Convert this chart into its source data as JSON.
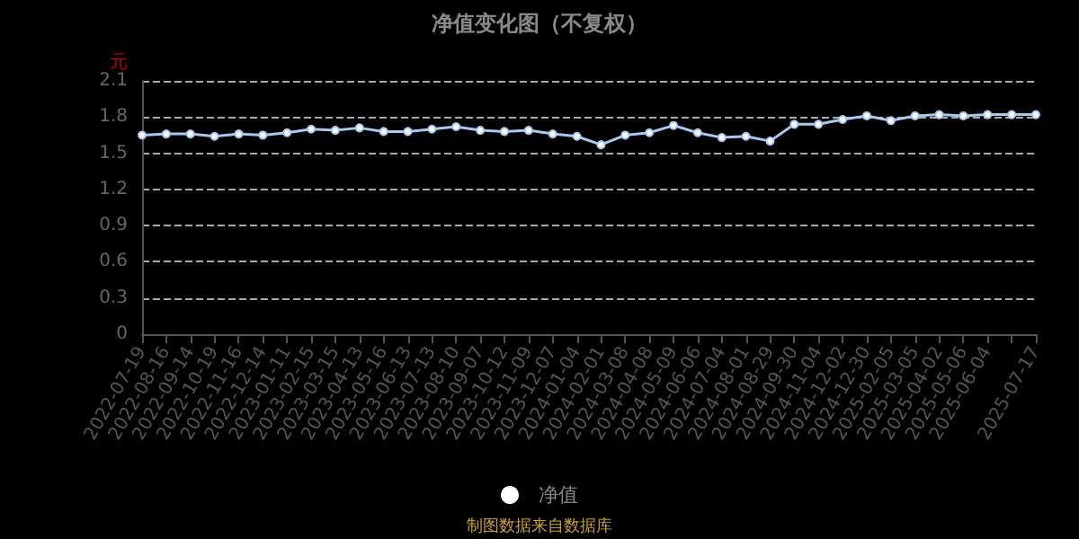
{
  "chart_data": {
    "type": "line",
    "title": "净值变化图（不复权）",
    "ylabel": "元",
    "categories": [
      "2022-07-19",
      "2022-08-16",
      "2022-09-14",
      "2022-10-19",
      "2022-11-16",
      "2022-12-14",
      "2023-01-11",
      "2023-02-15",
      "2023-03-15",
      "2023-04-13",
      "2023-05-16",
      "2023-06-13",
      "2023-07-13",
      "2023-08-10",
      "2023-09-07",
      "2023-10-12",
      "2023-11-09",
      "2023-12-07",
      "2024-01-04",
      "2024-02-01",
      "2024-03-08",
      "2024-04-08",
      "2024-05-09",
      "2024-06-06",
      "2024-07-04",
      "2024-08-01",
      "2024-08-29",
      "2024-09-30",
      "2024-11-04",
      "2024-12-02",
      "2024-12-30",
      "2025-02-05",
      "2025-03-05",
      "2025-04-02",
      "2025-05-06",
      "2025-06-04",
      null,
      "2025-07-17"
    ],
    "series": [
      {
        "name": "净值",
        "color": "#a9c8f0",
        "values": [
          1.65,
          1.66,
          1.66,
          1.64,
          1.66,
          1.65,
          1.67,
          1.7,
          1.69,
          1.71,
          1.68,
          1.68,
          1.7,
          1.72,
          1.69,
          1.68,
          1.69,
          1.66,
          1.64,
          1.57,
          1.65,
          1.67,
          1.73,
          1.67,
          1.63,
          1.64,
          1.6,
          1.74,
          1.74,
          1.78,
          1.81,
          1.77,
          1.81,
          1.82,
          1.81,
          1.82,
          1.82,
          1.82
        ]
      }
    ],
    "ylim": [
      0,
      2.1
    ],
    "yticks": [
      0,
      0.3,
      0.6,
      0.9,
      1.2,
      1.5,
      1.8,
      2.1
    ],
    "grid": "y",
    "legend": "bottom",
    "marker": "circle",
    "line_style": "solid",
    "annotations": [
      "制图数据来自数据库"
    ]
  }
}
